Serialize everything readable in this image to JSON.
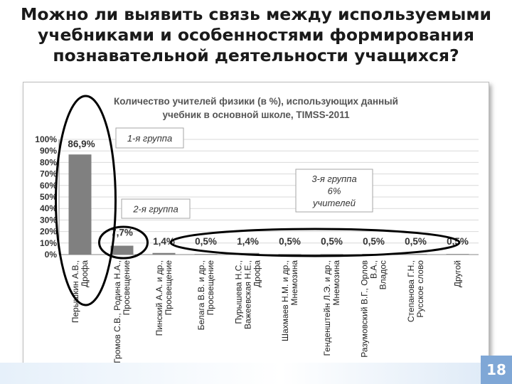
{
  "slide": {
    "title_lines": [
      "Можно ли выявить связь между используемыми",
      "учебниками и особенностями формирования",
      "познавательной деятельности учащихся?"
    ],
    "page_number": "18"
  },
  "chart_data": {
    "type": "bar",
    "title_lines": [
      "Количество учителей физики (в %), использующих  данный",
      "учебник в основной  школе, TIMSS-2011"
    ],
    "categories": [
      [
        "Перышкин А.В.,",
        "Дрофа"
      ],
      [
        "Громов С.В., Родина Н.А.,",
        "Просвещение"
      ],
      [
        "Пинский А.А. и др.,",
        "Просвещение"
      ],
      [
        "Белага В.В. и др.,",
        "Просвещение"
      ],
      [
        "Пурышева Н.С.,",
        "Важеевская Н.Е.,",
        "Дрофа"
      ],
      [
        "Шахмаев Н.М. и др.,",
        "Мнемозина"
      ],
      [
        "Генденштейн Л.Э. и др.,",
        "Мнемозина"
      ],
      [
        "Разумовский В.Г., Орлов",
        "В.А.,",
        "Владос"
      ],
      [
        "Степанова Г.Н.,",
        "Русское слово"
      ],
      [
        "Другой"
      ]
    ],
    "values": [
      86.9,
      7.7,
      1.4,
      0.5,
      1.4,
      0.5,
      0.5,
      0.5,
      0.5,
      0.5
    ],
    "data_labels": [
      "86,9%",
      "7,7%",
      "1,4%",
      "0,5%",
      "1,4%",
      "0,5%",
      "0,5%",
      "0,5%",
      "0,5%",
      "0,5%"
    ],
    "y_ticks": [
      "0%",
      "10%",
      "20%",
      "30%",
      "40%",
      "50%",
      "60%",
      "70%",
      "80%",
      "90%",
      "100%"
    ],
    "ylim": [
      0,
      100
    ],
    "bar_color": "#808080",
    "grid": true,
    "annotations": [
      {
        "lines": [
          "1-я группа"
        ]
      },
      {
        "lines": [
          "2-я группа"
        ]
      },
      {
        "lines": [
          "3-я группа",
          "6%",
          "учителей"
        ]
      }
    ],
    "highlight_color": "#000000"
  }
}
